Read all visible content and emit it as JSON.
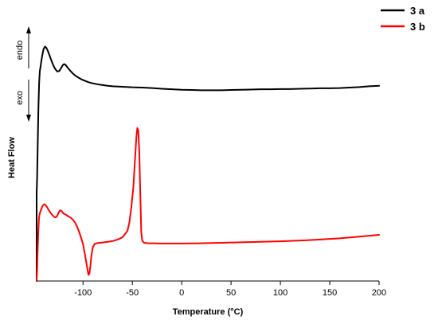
{
  "chart_data": {
    "type": "line",
    "title": "",
    "xlabel": "Temperature (°C)",
    "ylabel": "Heat Flow",
    "xlim": [
      -147,
      200
    ],
    "xticks": [
      -100,
      -50,
      0,
      50,
      100,
      150,
      200
    ],
    "yticks_shown": false,
    "grid": false,
    "legend_position": "top-right",
    "annotations": {
      "up": "endo",
      "down": "exo"
    },
    "ylim": [
      0,
      1
    ],
    "series": [
      {
        "name": "3 a",
        "color": "#000000",
        "x": [
          -147,
          -146.5,
          -146,
          -145.2,
          -144.5,
          -143.8,
          -143,
          -141.5,
          -140,
          -138.5,
          -137,
          -135.5,
          -134,
          -132,
          -130,
          -128,
          -126,
          -124,
          -122,
          -120.5,
          -119,
          -117.5,
          -116,
          -114,
          -112,
          -110,
          -108,
          -105,
          -102,
          -98,
          -94,
          -90,
          -85,
          -80,
          -75,
          -70,
          -60,
          -50,
          -40,
          -30,
          -20,
          -10,
          0,
          10,
          20,
          30,
          40,
          50,
          60,
          70,
          80,
          90,
          100,
          110,
          120,
          130,
          140,
          150,
          160,
          170,
          180,
          190,
          200
        ],
        "y": [
          0.355,
          0.42,
          0.53,
          0.7,
          0.8,
          0.85,
          0.87,
          0.91,
          0.94,
          0.95,
          0.944,
          0.931,
          0.915,
          0.893,
          0.873,
          0.858,
          0.849,
          0.851,
          0.864,
          0.875,
          0.879,
          0.875,
          0.867,
          0.857,
          0.848,
          0.84,
          0.833,
          0.825,
          0.818,
          0.811,
          0.805,
          0.801,
          0.797,
          0.794,
          0.791,
          0.789,
          0.787,
          0.785,
          0.784,
          0.782,
          0.779,
          0.777,
          0.775,
          0.774,
          0.773,
          0.773,
          0.773,
          0.774,
          0.775,
          0.776,
          0.777,
          0.777,
          0.778,
          0.778,
          0.779,
          0.78,
          0.781,
          0.781,
          0.782,
          0.784,
          0.786,
          0.789,
          0.791
        ]
      },
      {
        "name": "3 b",
        "color": "#ff0000",
        "x": [
          -147,
          -146.5,
          -146,
          -145.3,
          -144.6,
          -143.8,
          -143,
          -142,
          -141,
          -139.5,
          -138,
          -136.5,
          -135,
          -133,
          -131,
          -129,
          -127.5,
          -126,
          -124.5,
          -123,
          -121.5,
          -120,
          -118,
          -116,
          -114,
          -112,
          -110,
          -108,
          -106,
          -104,
          -102,
          -100,
          -98.5,
          -97,
          -95.5,
          -94.5,
          -93.5,
          -92.5,
          -91.5,
          -90,
          -88,
          -85,
          -80,
          -75,
          -70,
          -65,
          -60,
          -55,
          -53,
          -51,
          -49,
          -47.5,
          -46,
          -45,
          -44,
          -43,
          -42,
          -41,
          -40,
          -39,
          -38,
          -36,
          -34,
          -30,
          -20,
          -10,
          0,
          20,
          40,
          60,
          80,
          100,
          120,
          140,
          160,
          180,
          200
        ],
        "y": [
          0.0,
          0.05,
          0.12,
          0.2,
          0.256,
          0.275,
          0.283,
          0.294,
          0.304,
          0.311,
          0.308,
          0.3,
          0.289,
          0.277,
          0.267,
          0.259,
          0.258,
          0.265,
          0.279,
          0.287,
          0.283,
          0.274,
          0.27,
          0.265,
          0.26,
          0.255,
          0.247,
          0.236,
          0.22,
          0.2,
          0.176,
          0.15,
          0.118,
          0.082,
          0.048,
          0.025,
          0.03,
          0.062,
          0.102,
          0.138,
          0.151,
          0.154,
          0.156,
          0.159,
          0.162,
          0.168,
          0.177,
          0.203,
          0.238,
          0.3,
          0.38,
          0.48,
          0.58,
          0.62,
          0.61,
          0.53,
          0.36,
          0.2,
          0.165,
          0.158,
          0.155,
          0.154,
          0.153,
          0.153,
          0.152,
          0.152,
          0.152,
          0.153,
          0.155,
          0.157,
          0.159,
          0.161,
          0.164,
          0.168,
          0.173,
          0.18,
          0.187
        ]
      }
    ]
  }
}
